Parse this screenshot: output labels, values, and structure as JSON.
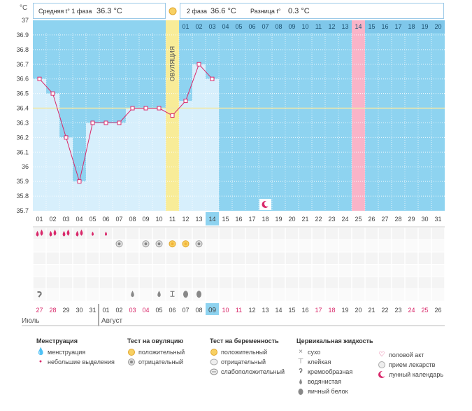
{
  "header": {
    "phase1_label": "Средняя t° 1 фаза",
    "phase1_value": "36.3 °C",
    "phase2_label": "2 фаза",
    "phase2_value": "36.6 °C",
    "diff_label": "Разница t°",
    "diff_value": "0.3 °C"
  },
  "chart_data": {
    "type": "line",
    "unit_label": "°C",
    "ylim": [
      35.7,
      37
    ],
    "yticks": [
      "37",
      "36.9",
      "36.8",
      "36.7",
      "36.6",
      "36.5",
      "36.4",
      "36.3",
      "36.2",
      "36.1",
      "36",
      "35.9",
      "35.8",
      "35.7"
    ],
    "cycle_days": [
      "01",
      "02",
      "03",
      "04",
      "05",
      "06",
      "07",
      "08",
      "09",
      "10",
      "11",
      "12",
      "13",
      "14",
      "15",
      "16",
      "17",
      "18",
      "19",
      "20",
      "21",
      "22",
      "23",
      "24",
      "25",
      "26",
      "27",
      "28",
      "29",
      "30",
      "31"
    ],
    "post_ovulation_days": [
      "01",
      "02",
      "03",
      "04",
      "05",
      "06",
      "07",
      "08",
      "09",
      "10",
      "11",
      "12",
      "13",
      "14",
      "15",
      "16",
      "17",
      "18",
      "19",
      "20"
    ],
    "temperatures": [
      36.6,
      36.5,
      36.2,
      35.9,
      36.3,
      36.3,
      36.3,
      36.4,
      36.4,
      36.4,
      36.35,
      36.45,
      36.7,
      36.6
    ],
    "coverline": 36.4,
    "ovulation_day_index": 11,
    "ovulation_label": "ОВУЛЯЦИЯ",
    "current_day_index": 14,
    "expected_period_post_day": "14",
    "moon_day_index": 18,
    "calendar_dates": [
      "27",
      "28",
      "29",
      "30",
      "31",
      "01",
      "02",
      "03",
      "04",
      "05",
      "06",
      "07",
      "08",
      "09",
      "10",
      "11",
      "12",
      "13",
      "14",
      "15",
      "16",
      "17",
      "18",
      "19",
      "20",
      "21",
      "22",
      "23",
      "24",
      "25",
      "26"
    ],
    "weekend_dates": [
      0,
      1,
      7,
      8,
      14,
      15,
      21,
      22,
      28,
      29
    ],
    "today_date_index": 13,
    "months": [
      {
        "name": "Июль",
        "start_index": 0
      },
      {
        "name": "Август",
        "start_index": 5
      }
    ],
    "colors": {
      "plot_bg": "#8ed3f0",
      "bar_fill": "#d7effc",
      "line": "#d9286a",
      "coverline": "#f2e8a6",
      "ovulation": "#f8ec98",
      "expected": "#f9b4c8",
      "today": "#8ed3f0",
      "weekend": "#d9286a"
    }
  },
  "marks": {
    "menstruation": [
      2,
      2,
      2,
      2,
      1,
      1,
      0,
      0,
      0,
      0,
      0,
      0,
      0,
      0
    ],
    "ovulation_test": [
      "",
      "",
      "",
      "",
      "",
      "",
      "neg",
      "",
      "neg",
      "neg",
      "pos",
      "pos",
      "neg",
      ""
    ],
    "cervical_fluid": [
      "creamy",
      "",
      "",
      "",
      "",
      "",
      "",
      "watery",
      "",
      "watery",
      "sticky",
      "eggwhite",
      "eggwhite",
      ""
    ]
  },
  "legend": {
    "menstruation": {
      "title": "Менструация",
      "items": [
        "менструация",
        "небольшие выделения"
      ]
    },
    "ovulation_test": {
      "title": "Тест на овуляцию",
      "items": [
        "положительный",
        "отрицательный"
      ]
    },
    "pregnancy_test": {
      "title": "Тест на беременность",
      "items": [
        "положительный",
        "отрицательный",
        "слабоположительный"
      ]
    },
    "cervical_fluid": {
      "title": "Цервикальная жидкость",
      "items": [
        "сухо",
        "клейкая",
        "кремообразная",
        "водянистая",
        "яичный белок"
      ]
    },
    "other": {
      "items": [
        "половой акт",
        "прием лекарств",
        "лунный календарь"
      ]
    }
  }
}
